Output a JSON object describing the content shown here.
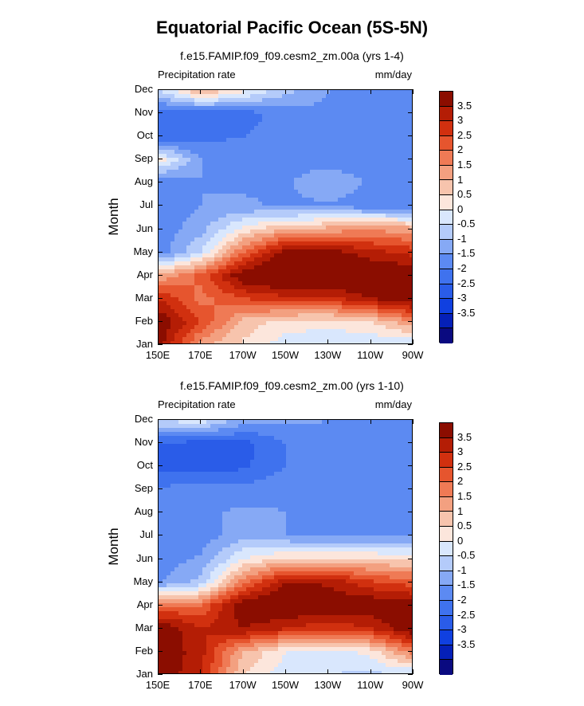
{
  "figure_title": "Equatorial Pacific Ocean (5S-5N)",
  "colors": {
    "levels": [
      "#0a0a80",
      "#0520b8",
      "#1040e0",
      "#2a5ce8",
      "#3f72ee",
      "#5c8af2",
      "#86a9f5",
      "#b4cbfa",
      "#d9e7fd",
      "#fce6dc",
      "#f7c4ad",
      "#f3a080",
      "#ef7a55",
      "#e6552e",
      "#d1300f",
      "#b41d05",
      "#8b0d00"
    ]
  },
  "chart_data": [
    {
      "type": "heatmap",
      "title": "f.e15.FAMIP.f09_f09.cesm2_zm.00a (yrs 1-4)",
      "variable": "Precipitation rate",
      "units": "mm/day",
      "ylabel": "Month",
      "xlabel": "",
      "x": [
        "150E",
        "170E",
        "170W",
        "150W",
        "130W",
        "110W",
        "90W"
      ],
      "y": [
        "Jan",
        "Feb",
        "Mar",
        "Apr",
        "May",
        "Jun",
        "Jul",
        "Aug",
        "Sep",
        "Oct",
        "Nov",
        "Dec"
      ],
      "colorbar_labels": [
        "3.5",
        "3",
        "2.5",
        "2",
        "1.5",
        "1",
        "0.5",
        "0",
        "-0.5",
        "-1",
        "-1.5",
        "-2",
        "-2.5",
        "-3",
        "-3.5"
      ],
      "values": [
        [
          3.8,
          1.2,
          0.4,
          -0.3,
          -0.5,
          -0.5,
          -0.6
        ],
        [
          4.0,
          2.5,
          0.8,
          0.3,
          0.2,
          0.5,
          1.5
        ],
        [
          3.0,
          1.8,
          2.5,
          2.8,
          2.8,
          3.5,
          4.0
        ],
        [
          1.0,
          2.2,
          4.0,
          4.5,
          4.5,
          4.2,
          4.0
        ],
        [
          -1.8,
          -0.5,
          2.0,
          3.8,
          3.8,
          3.2,
          2.8
        ],
        [
          -1.8,
          -1.2,
          0.2,
          1.0,
          1.2,
          1.4,
          1.2
        ],
        [
          -2.0,
          -1.5,
          -1.4,
          -1.6,
          -1.6,
          -1.8,
          -1.8
        ],
        [
          -2.0,
          -1.5,
          -1.6,
          -1.6,
          -1.0,
          -1.6,
          -1.8
        ],
        [
          0.3,
          -1.5,
          -1.6,
          -1.7,
          -1.8,
          -1.9,
          -1.9
        ],
        [
          -2.5,
          -2.2,
          -2.0,
          -1.8,
          -1.8,
          -1.9,
          -2.0
        ],
        [
          -2.4,
          -2.3,
          -2.2,
          -1.8,
          -1.6,
          -1.7,
          -1.8
        ],
        [
          -0.5,
          1.2,
          0.2,
          -0.8,
          -1.5,
          -1.6,
          -1.6
        ]
      ]
    },
    {
      "type": "heatmap",
      "title": "f.e15.FAMIP.f09_f09.cesm2_zm.00 (yrs 1-10)",
      "variable": "Precipitation rate",
      "units": "mm/day",
      "ylabel": "Month",
      "xlabel": "",
      "x": [
        "150E",
        "170E",
        "170W",
        "150W",
        "130W",
        "110W",
        "90W"
      ],
      "y": [
        "Jan",
        "Feb",
        "Mar",
        "Apr",
        "May",
        "Jun",
        "Jul",
        "Aug",
        "Sep",
        "Oct",
        "Nov",
        "Dec"
      ],
      "colorbar_labels": [
        "3.5",
        "3",
        "2.5",
        "2",
        "1.5",
        "1",
        "0.5",
        "0",
        "-0.5",
        "-1",
        "-1.5",
        "-2",
        "-2.5",
        "-3",
        "-3.5"
      ],
      "values": [
        [
          4.0,
          3.0,
          0.5,
          -0.3,
          -0.5,
          -0.6,
          -0.6
        ],
        [
          4.0,
          3.2,
          1.0,
          0.0,
          -0.3,
          0.2,
          1.8
        ],
        [
          4.0,
          3.0,
          3.5,
          3.0,
          2.6,
          3.0,
          4.0
        ],
        [
          2.0,
          2.0,
          4.0,
          4.2,
          4.0,
          4.0,
          3.8
        ],
        [
          -1.6,
          -0.8,
          1.8,
          3.5,
          3.4,
          2.6,
          2.2
        ],
        [
          -1.8,
          -1.4,
          0.0,
          0.6,
          0.6,
          0.5,
          0.4
        ],
        [
          -1.6,
          -1.8,
          -1.2,
          -1.5,
          -1.6,
          -1.5,
          -1.6
        ],
        [
          -1.8,
          -1.6,
          -1.4,
          -1.5,
          -1.6,
          -1.6,
          -1.8
        ],
        [
          -1.9,
          -1.8,
          -1.8,
          -1.6,
          -1.6,
          -1.7,
          -1.8
        ],
        [
          -2.6,
          -2.8,
          -2.6,
          -2.0,
          -1.8,
          -1.7,
          -1.9
        ],
        [
          -2.5,
          -2.7,
          -2.7,
          -2.0,
          -1.6,
          -1.6,
          -1.8
        ],
        [
          -0.4,
          -0.2,
          -1.2,
          -1.4,
          -1.5,
          -1.6,
          -1.6
        ]
      ]
    }
  ]
}
